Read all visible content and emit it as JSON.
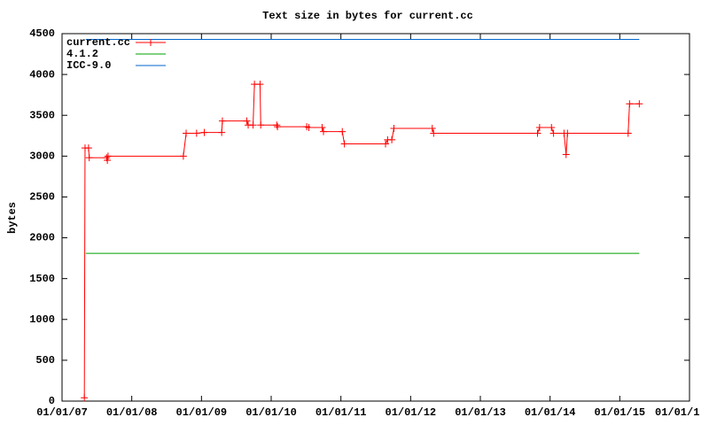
{
  "chart_data": {
    "type": "line",
    "title": "Text size in bytes for current.cc",
    "y_label": "bytes",
    "xlim": [
      2007,
      2016
    ],
    "xticks": [
      {
        "value": 2007,
        "label": "01/01/07"
      },
      {
        "value": 2008,
        "label": "01/01/08"
      },
      {
        "value": 2009,
        "label": "01/01/09"
      },
      {
        "value": 2010,
        "label": "01/01/10"
      },
      {
        "value": 2011,
        "label": "01/01/11"
      },
      {
        "value": 2012,
        "label": "01/01/12"
      },
      {
        "value": 2013,
        "label": "01/01/13"
      },
      {
        "value": 2014,
        "label": "01/01/14"
      },
      {
        "value": 2015,
        "label": "01/01/15"
      },
      {
        "value": 2016,
        "label": "01/01/1"
      }
    ],
    "ylim": [
      0,
      4500
    ],
    "yticks": [
      0,
      500,
      1000,
      1500,
      2000,
      2500,
      3000,
      3500,
      4000,
      4500
    ],
    "legend": "top-left",
    "series": [
      {
        "name": "current.cc",
        "color": "#ff0000",
        "markers": true,
        "x": [
          2007.32,
          2007.33,
          2007.38,
          2007.39,
          2007.64,
          2007.65,
          2007.66,
          2008.74,
          2008.78,
          2008.93,
          2009.04,
          2009.29,
          2009.3,
          2009.65,
          2009.67,
          2009.74,
          2009.76,
          2009.84,
          2009.85,
          2010.08,
          2010.09,
          2010.51,
          2010.54,
          2010.73,
          2010.75,
          2011.02,
          2011.05,
          2011.64,
          2011.67,
          2011.73,
          2011.76,
          2012.31,
          2012.33,
          2013.82,
          2013.85,
          2014.02,
          2014.05,
          2014.2,
          2014.23,
          2014.25,
          2015.12,
          2015.14,
          2015.28
        ],
        "values": [
          40,
          3100,
          3100,
          2980,
          2980,
          2950,
          3000,
          3000,
          3280,
          3280,
          3290,
          3290,
          3430,
          3430,
          3380,
          3380,
          3880,
          3880,
          3380,
          3380,
          3360,
          3360,
          3350,
          3350,
          3300,
          3300,
          3150,
          3150,
          3200,
          3200,
          3340,
          3340,
          3280,
          3280,
          3350,
          3350,
          3280,
          3280,
          3020,
          3280,
          3280,
          3640,
          3640
        ]
      },
      {
        "name": "4.1.2",
        "color": "#00a000",
        "markers": false,
        "x": [
          2007.34,
          2015.28
        ],
        "values": [
          1810,
          1810
        ]
      },
      {
        "name": "ICC-9.0",
        "color": "#0066cc",
        "markers": false,
        "x": [
          2007.34,
          2015.28
        ],
        "values": [
          4430,
          4430
        ]
      }
    ]
  }
}
